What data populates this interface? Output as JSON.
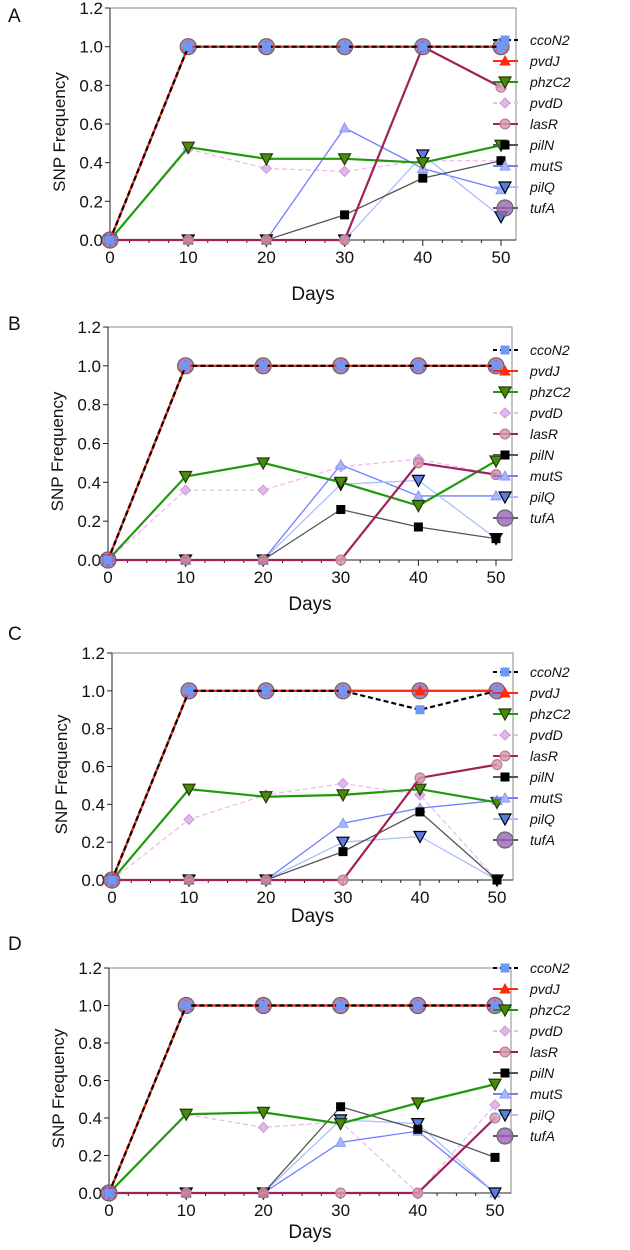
{
  "series_styles": {
    "ccoN2": {
      "line": "#000000",
      "dash": true,
      "marker": "square",
      "fill": "#6e98f5",
      "stroke": "#6e98f5"
    },
    "pvdJ": {
      "line": "#ff2a10",
      "dash": false,
      "marker": "triangle-up",
      "fill": "#ff2a10",
      "stroke": "#ff2a10"
    },
    "phzC2": {
      "line": "#1f9a0c",
      "dash": false,
      "marker": "triangle-down",
      "fill": "#4a8a0c",
      "stroke": "#203808"
    },
    "pvdD": {
      "line": "#f2b8f2",
      "dash": true,
      "marker": "diamond",
      "fill": "#e4b6ee",
      "stroke": "#c99ad6"
    },
    "lasR": {
      "line": "#a0205a",
      "dash": false,
      "marker": "circle",
      "fill": "#d898b0",
      "stroke": "#b07890"
    },
    "pilN": {
      "line": "#555555",
      "dash": false,
      "marker": "square",
      "fill": "#000000",
      "stroke": "#000000"
    },
    "mutS": {
      "line": "#6f7fff",
      "dash": false,
      "marker": "triangle-up",
      "fill": "#a8b4ff",
      "stroke": "#8c9af0"
    },
    "pilQ": {
      "line": "#a8c0ff",
      "dash": false,
      "marker": "triangle-down",
      "fill": "#5b7de0",
      "stroke": "#000000"
    },
    "tufA": {
      "line": "#7a4a90",
      "dash": false,
      "marker": "big-circle",
      "fill": "#9a64b4",
      "stroke": "#666666"
    }
  },
  "chart_data": [
    {
      "panel": "A",
      "type": "line",
      "xlabel": "Days",
      "ylabel": "SNP Frequency",
      "x": [
        0,
        10,
        20,
        30,
        40,
        50
      ],
      "xticks": [
        "0",
        "10",
        "20",
        "30",
        "40",
        "50"
      ],
      "ylim": [
        0,
        1.2
      ],
      "yticks": [
        "0.0",
        "0.2",
        "0.4",
        "0.6",
        "0.8",
        "1.0",
        "1.2"
      ],
      "legend": "right",
      "series": [
        {
          "name": "ccoN2",
          "values": [
            0,
            1,
            1,
            1,
            1,
            1
          ]
        },
        {
          "name": "pvdJ",
          "values": [
            0,
            1,
            1,
            1,
            1,
            1
          ]
        },
        {
          "name": "phzC2",
          "values": [
            0,
            0.48,
            0.42,
            0.42,
            0.4,
            0.49
          ]
        },
        {
          "name": "pvdD",
          "values": [
            0,
            0.47,
            0.37,
            0.355,
            0.41,
            0.41
          ]
        },
        {
          "name": "lasR",
          "values": [
            0,
            0,
            0,
            0,
            1.0,
            0.79
          ]
        },
        {
          "name": "pilN",
          "values": [
            0,
            0,
            0,
            0.13,
            0.32,
            0.41
          ]
        },
        {
          "name": "mutS",
          "values": [
            0,
            0,
            0,
            0.58,
            0.37,
            0.26
          ]
        },
        {
          "name": "pilQ",
          "values": [
            0,
            0,
            0,
            0,
            0.44,
            0.12
          ]
        },
        {
          "name": "tufA",
          "values": [
            0,
            1,
            1,
            1,
            1,
            1
          ]
        }
      ]
    },
    {
      "panel": "B",
      "type": "line",
      "xlabel": "Days",
      "ylabel": "SNP Frequency",
      "x": [
        0,
        10,
        20,
        30,
        40,
        50
      ],
      "xticks": [
        "0",
        "10",
        "20",
        "30",
        "40",
        "50"
      ],
      "ylim": [
        0,
        1.2
      ],
      "yticks": [
        "0.0",
        "0.2",
        "0.4",
        "0.6",
        "0.8",
        "1.0",
        "1.2"
      ],
      "legend": "right",
      "series": [
        {
          "name": "ccoN2",
          "values": [
            0,
            1,
            1,
            1,
            1,
            1
          ]
        },
        {
          "name": "pvdJ",
          "values": [
            0,
            1,
            1,
            1,
            1,
            1
          ]
        },
        {
          "name": "phzC2",
          "values": [
            0,
            0.43,
            0.5,
            0.4,
            0.28,
            0.51
          ]
        },
        {
          "name": "pvdD",
          "values": [
            0,
            0.36,
            0.36,
            0.48,
            0.52,
            0.44
          ]
        },
        {
          "name": "lasR",
          "values": [
            0,
            0,
            0,
            0,
            0.5,
            0.44
          ]
        },
        {
          "name": "pilN",
          "values": [
            0,
            0,
            0,
            0.26,
            0.17,
            0.11
          ]
        },
        {
          "name": "mutS",
          "values": [
            0,
            0,
            0,
            0.49,
            0.33,
            0.33
          ]
        },
        {
          "name": "pilQ",
          "values": [
            0,
            0,
            0,
            0.39,
            0.41,
            0.11
          ]
        },
        {
          "name": "tufA",
          "values": [
            0,
            1,
            1,
            1,
            1,
            1
          ]
        }
      ]
    },
    {
      "panel": "C",
      "type": "line",
      "xlabel": "Days",
      "ylabel": "SNP Frequency",
      "x": [
        0,
        10,
        20,
        30,
        40,
        50
      ],
      "xticks": [
        "0",
        "10",
        "20",
        "30",
        "40",
        "50"
      ],
      "ylim": [
        0,
        1.2
      ],
      "yticks": [
        "0.0",
        "0.2",
        "0.4",
        "0.6",
        "0.8",
        "1.0",
        "1.2"
      ],
      "legend": "right",
      "series": [
        {
          "name": "ccoN2",
          "values": [
            0,
            1,
            1,
            1,
            0.9,
            1
          ]
        },
        {
          "name": "pvdJ",
          "values": [
            0,
            1,
            1,
            1,
            1,
            1
          ]
        },
        {
          "name": "phzC2",
          "values": [
            0,
            0.48,
            0.44,
            0.45,
            0.48,
            0.41
          ]
        },
        {
          "name": "pvdD",
          "values": [
            0,
            0.32,
            0.45,
            0.51,
            0.45,
            0
          ]
        },
        {
          "name": "lasR",
          "values": [
            0,
            0,
            0,
            0,
            0.54,
            0.61
          ]
        },
        {
          "name": "pilN",
          "values": [
            0,
            0,
            0,
            0.15,
            0.36,
            0
          ]
        },
        {
          "name": "mutS",
          "values": [
            0,
            0,
            0,
            0.3,
            0.38,
            0.42
          ]
        },
        {
          "name": "pilQ",
          "values": [
            0,
            0,
            0,
            0.2,
            0.23,
            0
          ]
        },
        {
          "name": "tufA",
          "values": [
            0,
            1,
            1,
            1,
            1,
            1
          ]
        }
      ]
    },
    {
      "panel": "D",
      "type": "line",
      "xlabel": "Days",
      "ylabel": "SNP Frequency",
      "x": [
        0,
        10,
        20,
        30,
        40,
        50
      ],
      "xticks": [
        "0",
        "10",
        "20",
        "30",
        "40",
        "50"
      ],
      "ylim": [
        0,
        1.2
      ],
      "yticks": [
        "0.0",
        "0.2",
        "0.4",
        "0.6",
        "0.8",
        "1.0",
        "1.2"
      ],
      "legend": "right",
      "series": [
        {
          "name": "ccoN2",
          "values": [
            0,
            1,
            1,
            1,
            1,
            1
          ]
        },
        {
          "name": "pvdJ",
          "values": [
            0,
            1,
            1,
            1,
            1,
            1
          ]
        },
        {
          "name": "phzC2",
          "values": [
            0,
            0.42,
            0.43,
            0.37,
            0.48,
            0.58
          ]
        },
        {
          "name": "pvdD",
          "values": [
            0,
            0.42,
            0.35,
            0.38,
            0,
            0.47
          ]
        },
        {
          "name": "lasR",
          "values": [
            0,
            0,
            0,
            0,
            0,
            0.4
          ]
        },
        {
          "name": "pilN",
          "values": [
            0,
            0,
            0,
            0.46,
            0.34,
            0.19
          ]
        },
        {
          "name": "mutS",
          "values": [
            0,
            0,
            0,
            0.27,
            0.33,
            0
          ]
        },
        {
          "name": "pilQ",
          "values": [
            0,
            0,
            0,
            0.39,
            0.37,
            0
          ]
        },
        {
          "name": "tufA",
          "values": [
            0,
            1,
            1,
            1,
            1,
            1
          ]
        }
      ]
    }
  ]
}
